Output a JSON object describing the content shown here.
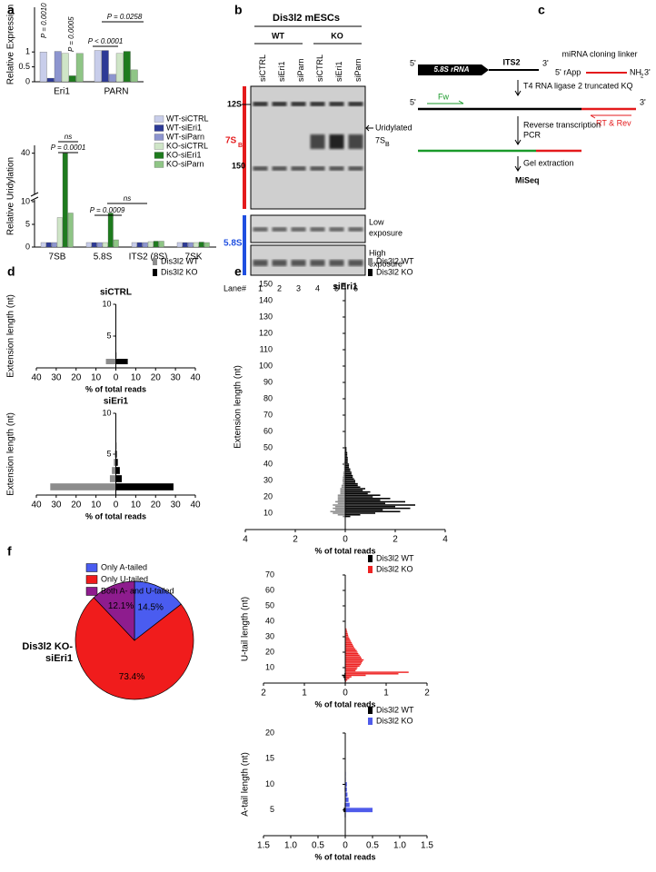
{
  "panel_labels": [
    "a",
    "b",
    "c",
    "d",
    "e",
    "f"
  ],
  "blot": {
    "title": "Dis3l2 mESCs",
    "genotypes": [
      "WT",
      "KO"
    ],
    "lanes": [
      "siCTRL",
      "siEri1",
      "siParn",
      "siCTRL",
      "siEri1",
      "siParn"
    ],
    "markers": [
      "12S",
      "150"
    ],
    "rna_7sb": [
      "7S",
      "B"
    ],
    "uridylated": [
      "Uridylated",
      "7S",
      "B"
    ],
    "rna_58s": "5.8S",
    "low_exposure": [
      "Low",
      "exposure"
    ],
    "high_exposure": [
      "High",
      "exposure"
    ],
    "lane_label": "Lane#",
    "lane_numbers": [
      "1",
      "2",
      "3",
      "4",
      "5",
      "6"
    ]
  },
  "diagram": {
    "ends": [
      "5'",
      "3'",
      "5'",
      "3'"
    ],
    "rrna": "5.8S rRNA",
    "its2": "ITS2",
    "linker": "miRNA cloning linker",
    "rapp": "5' rApp",
    "linker_end": [
      "NH",
      "2",
      "3'"
    ],
    "ligation": "T4 RNA ligase 2 truncated KQ",
    "fw": "Fw",
    "rev": "RT & Rev",
    "rt_pcr": [
      "Reverse transcription",
      "PCR"
    ],
    "gel": "Gel extraction",
    "miseq": "MiSeq"
  },
  "chart_data": [
    {
      "type": "bar",
      "ylabel": "Relative Expression",
      "categories": [
        "Eri1",
        "PARN"
      ],
      "series": [
        {
          "name": "WT-siCTRL",
          "color": "#c8cdea",
          "values": [
            1.0,
            1.05
          ]
        },
        {
          "name": "WT-siEri1",
          "color": "#2d3a96",
          "values": [
            0.12,
            1.05
          ]
        },
        {
          "name": "WT-siParn",
          "color": "#8d95cf",
          "values": [
            1.02,
            0.25
          ]
        },
        {
          "name": "KO-siCTRL",
          "color": "#cfe5c7",
          "values": [
            0.95,
            0.95
          ]
        },
        {
          "name": "KO-siEri1",
          "color": "#1e7b1e",
          "values": [
            0.2,
            1.02
          ]
        },
        {
          "name": "KO-siParn",
          "color": "#8fc586",
          "values": [
            0.95,
            0.4
          ]
        }
      ],
      "ylim": [
        0,
        2.5
      ],
      "yticks": [
        0,
        0.5,
        1
      ],
      "legend": true,
      "annotations": [
        "P = 0.0010",
        "P = 0.0005",
        "P < 0.0001",
        "P = 0.0258"
      ]
    },
    {
      "type": "bar",
      "ylabel": "Relative Uridylation",
      "categories": [
        "7SB",
        "5.8S",
        "ITS2 (8S)",
        "7SK"
      ],
      "series": [
        {
          "color": "#c8cdea",
          "values": [
            1,
            1,
            1,
            1
          ]
        },
        {
          "color": "#2d3a96",
          "values": [
            1,
            1,
            1,
            1
          ]
        },
        {
          "color": "#8d95cf",
          "values": [
            1,
            1,
            1,
            1
          ]
        },
        {
          "color": "#cfe5c7",
          "values": [
            6.5,
            1,
            1.2,
            1
          ]
        },
        {
          "color": "#1e7b1e",
          "values": [
            40,
            7.5,
            1.3,
            1.1
          ]
        },
        {
          "color": "#8fc586",
          "values": [
            7.5,
            1.6,
            1.3,
            1
          ]
        }
      ],
      "ylim": [
        0,
        42
      ],
      "ybreak": [
        10,
        30
      ],
      "yticks": [
        0,
        5,
        10,
        40
      ],
      "legend": false,
      "annotations": [
        "ns",
        "P = 0.0001",
        "ns",
        "P = 0.0009"
      ]
    },
    {
      "type": "bar",
      "orientation": "horizontal",
      "title": "siCTRL",
      "xlabel": "% of total reads",
      "ylabel": "Extension length (nt)",
      "y": [
        1,
        2,
        3,
        4,
        5,
        6,
        7,
        8,
        9,
        10
      ],
      "series": [
        {
          "name": "Dis3l2 WT",
          "color": "#8c8c8c",
          "side": "left",
          "values": [
            5,
            0.3,
            0.2,
            0.1,
            0.1,
            0,
            0,
            0,
            0,
            0
          ]
        },
        {
          "name": "Dis3l2 KO",
          "color": "#000000",
          "side": "right",
          "values": [
            6,
            0.3,
            0.2,
            0.1,
            0.1,
            0,
            0,
            0,
            0,
            0
          ]
        }
      ],
      "xlim": [
        -40,
        40
      ],
      "xticks": [
        {
          "value": -40,
          "label": "40"
        },
        {
          "value": -30,
          "label": "30"
        },
        {
          "value": -20,
          "label": "20"
        },
        {
          "value": -10,
          "label": "10"
        },
        0,
        10,
        20,
        30,
        40
      ],
      "ylim": [
        0,
        10
      ],
      "yticks": [
        5,
        10
      ],
      "legend": true
    },
    {
      "type": "bar",
      "orientation": "horizontal",
      "title": "siEri1",
      "xlabel": "% of total reads",
      "ylabel": "Extension length (nt)",
      "y": [
        1,
        2,
        3,
        4,
        5,
        6,
        7,
        8,
        9,
        10
      ],
      "series": [
        {
          "color": "#8c8c8c",
          "side": "left",
          "values": [
            33,
            3,
            2,
            1,
            0.5,
            0.2,
            0.1,
            0.1,
            0,
            0
          ]
        },
        {
          "color": "#000000",
          "side": "right",
          "values": [
            29,
            3,
            2,
            1,
            0.5,
            0.3,
            0.1,
            0.1,
            0.1,
            0
          ]
        }
      ],
      "xlim": [
        -40,
        40
      ],
      "xticks": [
        {
          "value": -40,
          "label": "40"
        },
        {
          "value": -30,
          "label": "30"
        },
        {
          "value": -20,
          "label": "20"
        },
        {
          "value": -10,
          "label": "10"
        },
        0,
        10,
        20,
        30,
        40
      ],
      "ylim": [
        0,
        10
      ],
      "yticks": [
        5,
        10
      ],
      "legend": false
    },
    {
      "type": "bar",
      "orientation": "horizontal",
      "title": "siEri1",
      "xlabel": "% of total reads",
      "ylabel": "Extension length (nt)",
      "y": [
        8,
        9,
        10,
        11,
        12,
        13,
        14,
        15,
        16,
        17,
        18,
        19,
        20,
        21,
        22,
        23,
        24,
        25,
        26,
        27,
        28,
        29,
        30,
        31,
        32,
        33,
        34,
        35,
        36,
        37,
        38,
        39,
        40,
        41,
        42,
        43,
        44,
        45,
        46,
        47,
        48,
        49,
        50
      ],
      "series": [
        {
          "name": "Dis3l2 WT",
          "color": "#8c8c8c",
          "side": "left",
          "values": [
            0.1,
            0.3,
            0.5,
            0.6,
            0.4,
            0.5,
            0.4,
            0.5,
            0.3,
            0.4,
            0.3,
            0.3,
            0.3,
            0.3,
            0.2,
            0.2,
            0.2,
            0.2,
            0.15,
            0.15,
            0.1,
            0.1,
            0.1,
            0.1,
            0.1,
            0.08,
            0.08,
            0.08,
            0.05,
            0.05,
            0.05,
            0.05,
            0.05,
            0.05,
            0.03,
            0.03,
            0.03,
            0.03,
            0.03,
            0.03,
            0.02,
            0.02,
            0.02
          ]
        },
        {
          "name": "Dis3l2 KO",
          "color": "#000000",
          "side": "right",
          "values": [
            0.2,
            0.6,
            1.2,
            2.2,
            1.5,
            2.6,
            2.0,
            2.8,
            1.6,
            2.4,
            1.4,
            1.8,
            1.1,
            1.4,
            0.9,
            1.0,
            0.7,
            0.8,
            0.6,
            0.5,
            0.5,
            0.4,
            0.4,
            0.35,
            0.3,
            0.3,
            0.25,
            0.25,
            0.2,
            0.2,
            0.15,
            0.15,
            0.15,
            0.1,
            0.1,
            0.1,
            0.1,
            0.08,
            0.08,
            0.08,
            0.05,
            0.05,
            0.05
          ]
        }
      ],
      "xlim": [
        -4,
        4
      ],
      "xticks": [
        {
          "value": -4,
          "label": "4"
        },
        {
          "value": -2,
          "label": "2"
        },
        0,
        2,
        4
      ],
      "ylim": [
        0,
        150
      ],
      "yticks": [
        10,
        20,
        30,
        40,
        50,
        60,
        70,
        80,
        90,
        100,
        110,
        120,
        130,
        140,
        150
      ],
      "legend": true
    },
    {
      "type": "bar",
      "orientation": "horizontal",
      "xlabel": "% of total reads",
      "ylabel": "U-tail length (nt)",
      "y": [
        1,
        2,
        3,
        4,
        5,
        6,
        7,
        8,
        9,
        10,
        11,
        12,
        13,
        14,
        15,
        16,
        17,
        18,
        19,
        20,
        21,
        22,
        23,
        24,
        25,
        26,
        27,
        28,
        29,
        30,
        31,
        32,
        33,
        34,
        35
      ],
      "series": [
        {
          "name": "Dis3l2 WT",
          "color": "#000000",
          "side": "left",
          "values": [
            0.01,
            0.02,
            0.03,
            0.05,
            0.08,
            0.02,
            0.01,
            0,
            0,
            0,
            0,
            0,
            0,
            0,
            0,
            0,
            0,
            0,
            0,
            0,
            0,
            0,
            0,
            0,
            0,
            0,
            0,
            0,
            0,
            0,
            0,
            0,
            0,
            0,
            0
          ]
        },
        {
          "name": "Dis3l2 KO",
          "color": "#ee2222",
          "side": "right",
          "values": [
            0.02,
            0.05,
            0.1,
            0.15,
            0.5,
            1.3,
            1.55,
            0.25,
            0.28,
            0.3,
            0.35,
            0.38,
            0.4,
            0.42,
            0.45,
            0.4,
            0.38,
            0.35,
            0.32,
            0.3,
            0.28,
            0.25,
            0.22,
            0.2,
            0.18,
            0.16,
            0.14,
            0.12,
            0.1,
            0.08,
            0.07,
            0.06,
            0.05,
            0.04,
            0.03
          ]
        }
      ],
      "xlim": [
        -2,
        2
      ],
      "xticks": [
        {
          "value": -2,
          "label": "2"
        },
        {
          "value": -1,
          "label": "1"
        },
        0,
        1,
        2
      ],
      "ylim": [
        0,
        70
      ],
      "yticks": [
        10,
        20,
        30,
        40,
        50,
        60,
        70
      ],
      "legend": true
    },
    {
      "type": "bar",
      "orientation": "horizontal",
      "xlabel": "% of total reads",
      "ylabel": "A-tail length (nt)",
      "y": [
        1,
        2,
        3,
        4,
        5,
        6,
        7,
        8,
        9,
        10,
        11,
        12
      ],
      "series": [
        {
          "name": "Dis3l2 WT",
          "color": "#000000",
          "side": "left",
          "values": [
            0,
            0,
            0,
            0.01,
            0.03,
            0.01,
            0,
            0,
            0.01,
            0,
            0,
            0
          ]
        },
        {
          "name": "Dis3l2 KO",
          "color": "#4f5bea",
          "side": "right",
          "values": [
            0,
            0,
            0,
            0.01,
            0.5,
            0.08,
            0.06,
            0.04,
            0.03,
            0.03,
            0.01,
            0.01
          ]
        }
      ],
      "xlim": [
        -1.5,
        1.5
      ],
      "xticks": [
        {
          "value": -1.5,
          "label": "1.5"
        },
        {
          "value": -1,
          "label": "1.0"
        },
        {
          "value": -0.5,
          "label": "0.5"
        },
        0,
        0.5,
        {
          "value": 1,
          "label": "1.0"
        },
        1.5
      ],
      "ylim": [
        0,
        20
      ],
      "yticks": [
        5,
        10,
        15,
        20
      ],
      "legend": true
    },
    {
      "type": "pie",
      "title_lines": [
        "Dis3l2 KO-",
        "siEri1"
      ],
      "categories": [
        "Only A-tailed",
        "Only U-tailed",
        "Both A- and U-tailed"
      ],
      "values": [
        14.5,
        73.4,
        12.1
      ],
      "value_labels": [
        "14.5%",
        "73.4%",
        "12.1%"
      ],
      "colors": [
        "#4a5cf0",
        "#f01c1c",
        "#8e1c8e"
      ]
    }
  ]
}
